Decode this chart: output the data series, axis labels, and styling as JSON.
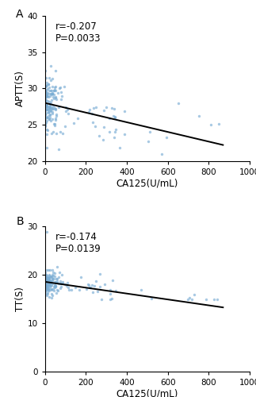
{
  "panel_A": {
    "label": "A",
    "annotation": "r=-0.207\nP=0.0033",
    "xlabel": "CA125(U/mL)",
    "ylabel": "APTT(S)",
    "xlim": [
      0,
      1000
    ],
    "ylim": [
      20,
      40
    ],
    "xticks": [
      0,
      200,
      400,
      600,
      800,
      1000
    ],
    "yticks": [
      20,
      25,
      30,
      35,
      40
    ],
    "trend_x": [
      0,
      870
    ],
    "trend_y": [
      28.0,
      22.2
    ],
    "scatter_color": "#7aadd4",
    "line_color": "#000000"
  },
  "panel_B": {
    "label": "B",
    "annotation": "r=-0.174\nP=0.0139",
    "xlabel": "CA125(U/mL)",
    "ylabel": "TT(S)",
    "xlim": [
      0,
      1000
    ],
    "ylim": [
      0,
      30
    ],
    "xticks": [
      0,
      200,
      400,
      600,
      800,
      1000
    ],
    "yticks": [
      0,
      10,
      20,
      30
    ],
    "trend_x": [
      0,
      870
    ],
    "trend_y": [
      18.5,
      13.2
    ],
    "scatter_color": "#7aadd4",
    "line_color": "#000000"
  },
  "figure_bg": "#ffffff",
  "font_size_label": 8.5,
  "font_size_tick": 7.5,
  "font_size_annot": 8.5,
  "font_size_panel": 10,
  "scatter_size": 6,
  "scatter_alpha": 0.65
}
